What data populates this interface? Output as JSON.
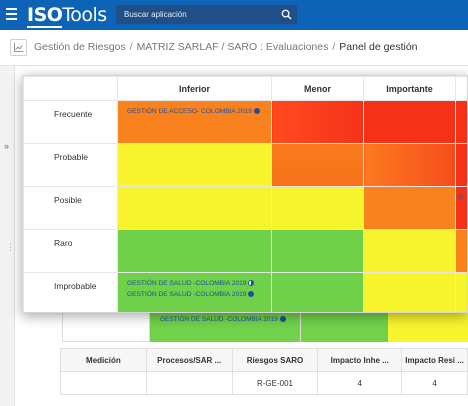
{
  "app": {
    "logo_main": "ISO",
    "logo_rest": "Tools"
  },
  "search": {
    "placeholder": "Buscar aplicación"
  },
  "breadcrumb": {
    "items": [
      "Gestión de Riesgos",
      "MATRIZ SARLAF / SARO : Evaluaciones"
    ],
    "separator": "/",
    "current": "Panel de gestión"
  },
  "rail": {
    "toggle": "»",
    "dots": "⋮"
  },
  "matrix": {
    "columns": [
      "Inferior",
      "Menor",
      "Importante"
    ],
    "rows": [
      {
        "label": "Frecuente",
        "items": [
          {
            "text": "GESTIÓN DE ACCESO- COLOMBIA 2019",
            "marker": "dot"
          }
        ]
      },
      {
        "label": "Probable",
        "items": []
      },
      {
        "label": "Posible",
        "items": [],
        "edge_text": "G"
      },
      {
        "label": "Raro",
        "items": []
      },
      {
        "label": "Improbable",
        "items": [
          {
            "text": "GESTIÓN DE SALUD -COLOMBIA 2019",
            "marker": "half"
          },
          {
            "text": "GESTIÓN DE SALUD -COLOMBIA 2019",
            "marker": "dot"
          }
        ]
      }
    ],
    "colors": {
      "red": "#f53219",
      "orange": "#f9821f",
      "yellow": "#f7f32c",
      "green": "#6fd049"
    }
  },
  "background_matrix": {
    "item": "GESTIÓN DE SALUD -COLOMBIA 2019"
  },
  "table": {
    "headers": [
      "Medición",
      "Procesos/SAR ...",
      "Riesgos SARO",
      "Impacto Inhe ...",
      "Impacto Resi ..."
    ],
    "rows": [
      [
        "",
        "",
        "R-GE-001",
        "4",
        "4"
      ]
    ]
  }
}
